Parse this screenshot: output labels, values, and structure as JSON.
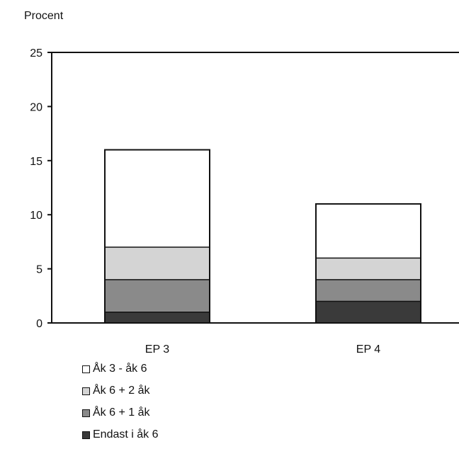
{
  "chart_data": {
    "type": "bar",
    "stacked": true,
    "ylabel": "Procent",
    "ylim": [
      0,
      25
    ],
    "yticks": [
      0,
      5,
      10,
      15,
      20,
      25
    ],
    "categories": [
      "EP 3",
      "EP 4"
    ],
    "series": [
      {
        "name": "Endast i åk 6",
        "values": [
          1,
          2
        ],
        "color": "#3a3a3a"
      },
      {
        "name": "Åk 6 + 1 åk",
        "values": [
          3,
          2
        ],
        "color": "#8a8a8a"
      },
      {
        "name": "Åk 6 + 2 åk",
        "values": [
          3,
          2
        ],
        "color": "#d4d4d4"
      },
      {
        "name": "Åk 3 - åk 6",
        "values": [
          9,
          5
        ],
        "color": "#ffffff"
      }
    ],
    "legend_order": [
      "Åk 3 - åk 6",
      "Åk 6 + 2 åk",
      "Åk 6 + 1 åk",
      "Endast i åk 6"
    ],
    "grid": false,
    "legend_position": "bottom-left"
  }
}
